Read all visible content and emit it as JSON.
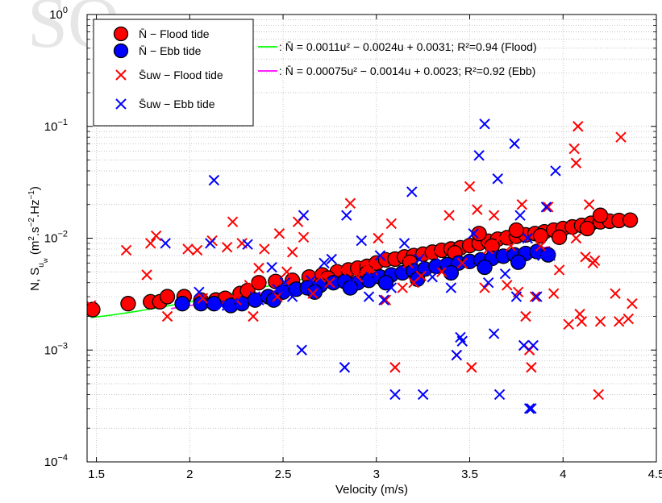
{
  "chart_data": {
    "type": "scatter",
    "xlabel": "Velocity (m/s)",
    "ylabel": "N̄, S̄uw (m²·s⁻²·Hz⁻¹)",
    "xlim": [
      1.45,
      4.5
    ],
    "ylim": [
      0.0001,
      1
    ],
    "yscale": "log",
    "grid": true,
    "x_ticks": [
      "1.5",
      "2",
      "2.5",
      "3",
      "3.5",
      "4",
      "4.5"
    ],
    "y_ticks": [
      {
        "value": 0.0001,
        "base": "10",
        "exp": "−4"
      },
      {
        "value": 0.001,
        "base": "10",
        "exp": "−3"
      },
      {
        "value": 0.01,
        "base": "10",
        "exp": "−2"
      },
      {
        "value": 0.1,
        "base": "10",
        "exp": "−1"
      },
      {
        "value": 1,
        "base": "10",
        "exp": "0"
      }
    ],
    "legend_location": "top-left",
    "colors": {
      "flood_fill": "#ff0000",
      "ebb_fill": "#0000ff",
      "flood_cross": "#ff0000",
      "ebb_cross": "#0000ff",
      "flood_fit": "#00ff00",
      "ebb_fit": "#ff00ff"
    },
    "legend": [
      {
        "key": "flood_n",
        "text": "N̄ − Flood tide",
        "marker": "circle",
        "color": "#ff0000"
      },
      {
        "key": "ebb_n",
        "text": "N̄ − Ebb tide",
        "marker": "circle",
        "color": "#0000ff"
      },
      {
        "key": "flood_s",
        "text": "S̄uw − Flood tide",
        "marker": "cross",
        "color": "#ff0000"
      },
      {
        "key": "ebb_s",
        "text": "S̄uw − Ebb tide",
        "marker": "cross",
        "color": "#0000ff"
      }
    ],
    "fits": [
      {
        "name": "Flood",
        "color": "#00ff00",
        "a": 0.0011,
        "b": -0.0024,
        "c": 0.0031,
        "x_range": [
          1.47,
          4.37
        ],
        "label": ": N̄ = 0.0011u² − 0.0024u + 0.0031;   R²=0.94  (Flood)"
      },
      {
        "name": "Ebb",
        "color": "#ff00ff",
        "a": 0.00075,
        "b": -0.0014,
        "c": 0.0023,
        "x_range": [
          1.9,
          3.93
        ],
        "label": ": N̄ = 0.00075u² − 0.0014u + 0.0023;   R²=0.92  (Ebb)"
      }
    ],
    "series": [
      {
        "key": "flood_n",
        "points": [
          [
            1.48,
            0.0023
          ],
          [
            1.67,
            0.0026
          ],
          [
            1.79,
            0.0027
          ],
          [
            1.84,
            0.0027
          ],
          [
            1.88,
            0.003
          ],
          [
            1.97,
            0.003
          ],
          [
            2.06,
            0.0028
          ],
          [
            2.14,
            0.0028
          ],
          [
            2.19,
            0.0029
          ],
          [
            2.27,
            0.0032
          ],
          [
            2.31,
            0.0034
          ],
          [
            2.37,
            0.004
          ],
          [
            2.46,
            0.0041
          ],
          [
            2.55,
            0.0042
          ],
          [
            2.64,
            0.0045
          ],
          [
            2.71,
            0.0047
          ],
          [
            2.79,
            0.005
          ],
          [
            2.85,
            0.0052
          ],
          [
            2.9,
            0.0054
          ],
          [
            2.95,
            0.0056
          ],
          [
            3.0,
            0.006
          ],
          [
            3.05,
            0.0064
          ],
          [
            3.1,
            0.0065
          ],
          [
            3.15,
            0.0068
          ],
          [
            3.2,
            0.007
          ],
          [
            3.25,
            0.0072
          ],
          [
            3.3,
            0.0075
          ],
          [
            3.35,
            0.0078
          ],
          [
            3.4,
            0.008
          ],
          [
            3.45,
            0.0082
          ],
          [
            3.5,
            0.0086
          ],
          [
            3.55,
            0.009
          ],
          [
            3.6,
            0.0094
          ],
          [
            3.65,
            0.0098
          ],
          [
            3.7,
            0.0101
          ],
          [
            3.75,
            0.0104
          ],
          [
            3.8,
            0.0107
          ],
          [
            3.85,
            0.011
          ],
          [
            3.9,
            0.0114
          ],
          [
            3.95,
            0.0118
          ],
          [
            4.0,
            0.0122
          ],
          [
            4.05,
            0.0126
          ],
          [
            4.1,
            0.013
          ],
          [
            4.15,
            0.0136
          ],
          [
            4.2,
            0.014
          ],
          [
            4.25,
            0.0142
          ],
          [
            4.3,
            0.0144
          ],
          [
            4.36,
            0.0145
          ],
          [
            4.13,
            0.0122
          ],
          [
            4.2,
            0.016
          ],
          [
            3.55,
            0.011
          ],
          [
            3.75,
            0.0118
          ],
          [
            3.88,
            0.0105
          ],
          [
            3.98,
            0.0102
          ],
          [
            3.62,
            0.0085
          ],
          [
            3.42,
            0.0074
          ],
          [
            3.18,
            0.0061
          ],
          [
            2.95,
            0.0049
          ],
          [
            2.74,
            0.0044
          ]
        ]
      },
      {
        "key": "ebb_n",
        "points": [
          [
            1.96,
            0.0026
          ],
          [
            2.06,
            0.0026
          ],
          [
            2.13,
            0.0026
          ],
          [
            2.22,
            0.0025
          ],
          [
            2.28,
            0.0026
          ],
          [
            2.35,
            0.0028
          ],
          [
            2.42,
            0.003
          ],
          [
            2.5,
            0.0033
          ],
          [
            2.57,
            0.0035
          ],
          [
            2.63,
            0.0036
          ],
          [
            2.7,
            0.0038
          ],
          [
            2.77,
            0.004
          ],
          [
            2.83,
            0.0041
          ],
          [
            2.9,
            0.004
          ],
          [
            2.96,
            0.0042
          ],
          [
            3.02,
            0.0045
          ],
          [
            3.08,
            0.0047
          ],
          [
            3.14,
            0.0049
          ],
          [
            3.2,
            0.0051
          ],
          [
            3.26,
            0.0053
          ],
          [
            3.32,
            0.0056
          ],
          [
            3.38,
            0.0058
          ],
          [
            3.44,
            0.006
          ],
          [
            3.5,
            0.0062
          ],
          [
            3.56,
            0.0064
          ],
          [
            3.62,
            0.0066
          ],
          [
            3.68,
            0.0069
          ],
          [
            3.74,
            0.0071
          ],
          [
            3.8,
            0.0073
          ],
          [
            3.86,
            0.0076
          ],
          [
            3.92,
            0.0071
          ],
          [
            2.67,
            0.0033
          ],
          [
            2.86,
            0.0036
          ],
          [
            3.05,
            0.004
          ],
          [
            3.22,
            0.0043
          ],
          [
            3.4,
            0.0049
          ],
          [
            3.58,
            0.0055
          ],
          [
            3.76,
            0.0061
          ],
          [
            2.45,
            0.0028
          ]
        ]
      },
      {
        "key": "flood_s",
        "points": [
          [
            1.47,
            0.0025
          ],
          [
            1.66,
            0.0078
          ],
          [
            1.77,
            0.0047
          ],
          [
            1.79,
            0.009
          ],
          [
            1.82,
            0.0105
          ],
          [
            1.88,
            0.002
          ],
          [
            1.99,
            0.008
          ],
          [
            2.04,
            0.0078
          ],
          [
            2.07,
            0.0029
          ],
          [
            2.12,
            0.0095
          ],
          [
            2.2,
            0.0083
          ],
          [
            2.23,
            0.014
          ],
          [
            2.25,
            0.0028
          ],
          [
            2.28,
            0.009
          ],
          [
            2.32,
            0.0038
          ],
          [
            2.34,
            0.002
          ],
          [
            2.37,
            0.0054
          ],
          [
            2.4,
            0.008
          ],
          [
            2.47,
            0.003
          ],
          [
            2.48,
            0.011
          ],
          [
            2.52,
            0.005
          ],
          [
            2.55,
            0.0075
          ],
          [
            2.58,
            0.014
          ],
          [
            2.61,
            0.0102
          ],
          [
            2.7,
            0.0045
          ],
          [
            2.75,
            0.004
          ],
          [
            2.81,
            0.0052
          ],
          [
            2.86,
            0.0205
          ],
          [
            2.9,
            0.0045
          ],
          [
            2.94,
            0.0055
          ],
          [
            2.98,
            0.0052
          ],
          [
            3.01,
            0.01
          ],
          [
            3.05,
            0.0028
          ],
          [
            3.08,
            0.0135
          ],
          [
            3.1,
            0.0007
          ],
          [
            3.14,
            0.0036
          ],
          [
            3.17,
            0.006
          ],
          [
            3.24,
            0.0046
          ],
          [
            3.3,
            0.0072
          ],
          [
            3.35,
            0.005
          ],
          [
            3.39,
            0.016
          ],
          [
            3.43,
            0.0009
          ],
          [
            3.46,
            0.006
          ],
          [
            3.5,
            0.029
          ],
          [
            3.51,
            0.0007
          ],
          [
            3.54,
            0.018
          ],
          [
            3.58,
            0.0036
          ],
          [
            3.63,
            0.016
          ],
          [
            3.66,
            0.01
          ],
          [
            3.7,
            0.0038
          ],
          [
            3.72,
            0.0085
          ],
          [
            3.76,
            0.0033
          ],
          [
            3.78,
            0.02
          ],
          [
            3.8,
            0.002
          ],
          [
            3.82,
            0.001
          ],
          [
            3.83,
            0.0007
          ],
          [
            3.85,
            0.003
          ],
          [
            3.88,
            0.0085
          ],
          [
            3.92,
            0.019
          ],
          [
            3.98,
            0.0052
          ],
          [
            4.03,
            0.0017
          ],
          [
            4.06,
            0.063
          ],
          [
            4.07,
            0.01
          ],
          [
            4.07,
            0.047
          ],
          [
            4.08,
            0.1
          ],
          [
            4.09,
            0.0021
          ],
          [
            4.1,
            0.0018
          ],
          [
            4.12,
            0.0068
          ],
          [
            4.14,
            0.02
          ],
          [
            4.16,
            0.006
          ],
          [
            4.17,
            0.0063
          ],
          [
            4.19,
            0.0004
          ],
          [
            4.2,
            0.0018
          ],
          [
            4.28,
            0.0032
          ],
          [
            4.3,
            0.0018
          ],
          [
            4.31,
            0.08
          ],
          [
            4.35,
            0.0019
          ],
          [
            4.37,
            0.0026
          ],
          [
            3.95,
            0.0032
          ],
          [
            3.6,
            0.008
          ],
          [
            3.2,
            0.004
          ],
          [
            2.66,
            0.0032
          ]
        ]
      },
      {
        "key": "ebb_s",
        "points": [
          [
            1.87,
            0.009
          ],
          [
            2.05,
            0.0033
          ],
          [
            2.11,
            0.009
          ],
          [
            2.13,
            0.033
          ],
          [
            2.17,
            0.0025
          ],
          [
            2.2,
            0.0025
          ],
          [
            2.23,
            0.0026
          ],
          [
            2.31,
            0.0088
          ],
          [
            2.35,
            0.003
          ],
          [
            2.37,
            0.0028
          ],
          [
            2.44,
            0.0055
          ],
          [
            2.47,
            0.0035
          ],
          [
            2.51,
            0.004
          ],
          [
            2.6,
            0.001
          ],
          [
            2.61,
            0.016
          ],
          [
            2.65,
            0.0042
          ],
          [
            2.72,
            0.006
          ],
          [
            2.76,
            0.0065
          ],
          [
            2.83,
            0.0007
          ],
          [
            2.84,
            0.016
          ],
          [
            2.87,
            0.004
          ],
          [
            2.92,
            0.0095
          ],
          [
            2.97,
            0.0045
          ],
          [
            3.02,
            0.007
          ],
          [
            3.04,
            0.0028
          ],
          [
            3.1,
            0.0004
          ],
          [
            3.15,
            0.009
          ],
          [
            3.19,
            0.026
          ],
          [
            3.23,
            0.0065
          ],
          [
            3.25,
            0.0004
          ],
          [
            3.3,
            0.0045
          ],
          [
            3.35,
            0.006
          ],
          [
            3.4,
            0.0036
          ],
          [
            3.45,
            0.0013
          ],
          [
            3.46,
            0.0012
          ],
          [
            3.52,
            0.011
          ],
          [
            3.55,
            0.055
          ],
          [
            3.58,
            0.105
          ],
          [
            3.6,
            0.004
          ],
          [
            3.62,
            0.007
          ],
          [
            3.63,
            0.0014
          ],
          [
            3.65,
            0.034
          ],
          [
            3.66,
            0.0004
          ],
          [
            3.69,
            0.0048
          ],
          [
            3.74,
            0.07
          ],
          [
            3.75,
            0.003
          ],
          [
            3.77,
            0.016
          ],
          [
            3.79,
            0.0011
          ],
          [
            3.81,
            0.01
          ],
          [
            3.82,
            0.0003
          ],
          [
            3.83,
            0.0003
          ],
          [
            3.84,
            0.0011
          ],
          [
            3.86,
            0.003
          ],
          [
            3.89,
            0.007
          ],
          [
            3.91,
            0.019
          ],
          [
            3.93,
            0.007
          ],
          [
            3.96,
            0.04
          ],
          [
            3.43,
            0.0009
          ],
          [
            3.08,
            0.0036
          ],
          [
            2.96,
            0.003
          ],
          [
            2.55,
            0.003
          ]
        ]
      }
    ]
  }
}
